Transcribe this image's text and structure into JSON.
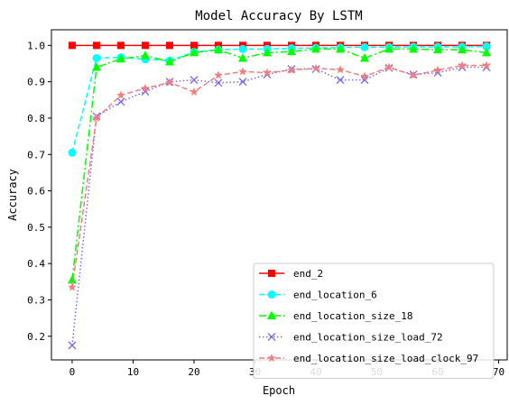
{
  "chart_data": {
    "type": "line",
    "title": "Model Accuracy By LSTM",
    "xlabel": "Epoch",
    "ylabel": "Accuracy",
    "xlim": [
      -3.4,
      71.4
    ],
    "ylim": [
      0.135,
      1.043
    ],
    "xticks": [
      0,
      10,
      20,
      30,
      40,
      50,
      60,
      70
    ],
    "yticks": [
      0.2,
      0.3,
      0.4,
      0.5,
      0.6,
      0.7,
      0.8,
      0.9,
      1.0
    ],
    "ytick_labels": [
      "0.2",
      "0.3",
      "0.4",
      "0.5",
      "0.6",
      "0.7",
      "0.8",
      "0.9",
      "1.0"
    ],
    "grid": false,
    "legend_position": "lower right",
    "x": [
      0,
      4,
      8,
      12,
      16,
      20,
      24,
      28,
      32,
      36,
      40,
      44,
      48,
      52,
      56,
      60,
      64,
      68
    ],
    "series": [
      {
        "name": "end_2",
        "color": "#ff0000",
        "marker": "square",
        "dash": "solid",
        "values": [
          1.0,
          1.0,
          1.0,
          1.0,
          1.0,
          1.0,
          1.0,
          1.0,
          1.0,
          1.0,
          1.0,
          1.0,
          1.0,
          1.0,
          1.0,
          1.0,
          1.0,
          1.0
        ]
      },
      {
        "name": "end_location_6",
        "color": "#00ffff",
        "marker": "circle",
        "dash": "dashed",
        "values": [
          0.705,
          0.965,
          0.967,
          0.962,
          0.958,
          0.982,
          0.988,
          0.99,
          0.99,
          0.992,
          0.993,
          0.994,
          0.995,
          0.995,
          0.996,
          0.996,
          0.996,
          0.997
        ]
      },
      {
        "name": "end_location_size_18",
        "color": "#00ff00",
        "marker": "triangle",
        "dash": "dashdot",
        "values": [
          0.355,
          0.94,
          0.963,
          0.972,
          0.955,
          0.98,
          0.988,
          0.965,
          0.98,
          0.983,
          0.99,
          0.99,
          0.965,
          0.99,
          0.99,
          0.988,
          0.988,
          0.98
        ]
      },
      {
        "name": "end_location_size_load_72",
        "color": "#7b68ee",
        "marker": "x",
        "dash": "dotted",
        "values": [
          0.175,
          0.805,
          0.845,
          0.873,
          0.9,
          0.905,
          0.897,
          0.9,
          0.92,
          0.935,
          0.935,
          0.905,
          0.905,
          0.938,
          0.92,
          0.925,
          0.94,
          0.94
        ]
      },
      {
        "name": "end_location_size_load_clock_97",
        "color": "#f08080",
        "marker": "star",
        "dash": "dashed",
        "values": [
          0.335,
          0.8,
          0.863,
          0.882,
          0.898,
          0.872,
          0.918,
          0.928,
          0.925,
          0.932,
          0.937,
          0.933,
          0.915,
          0.94,
          0.918,
          0.932,
          0.945,
          0.945
        ]
      }
    ]
  }
}
